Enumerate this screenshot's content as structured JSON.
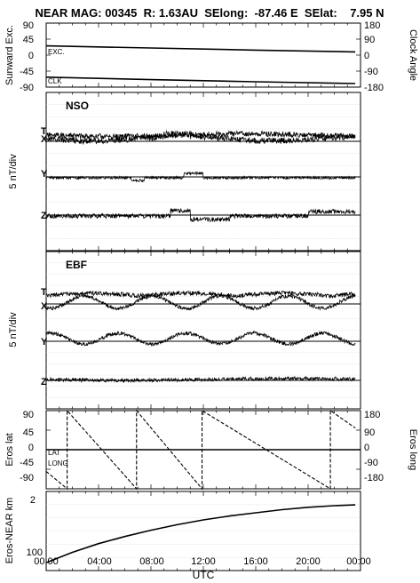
{
  "title": "NEAR MAG: 00345  R: 1.63AU  SElong:  -87.46 E  SElat:    7.95 N",
  "xaxis": {
    "label": "UTC",
    "ticks": [
      "00:00",
      "04:00",
      "08:00",
      "12:00",
      "16:00",
      "20:00",
      "00:00"
    ]
  },
  "chart_data": [
    {
      "type": "line",
      "panel": "sunward-clock",
      "ylabel_left": "Sunward Exc.",
      "ylabel_right": "Clock Angle",
      "yticks_left": [
        "90",
        "45",
        "0",
        "-45",
        "-90"
      ],
      "yticks_right": [
        "180",
        "90",
        "0",
        "-90",
        "-180"
      ],
      "ylim_left": [
        -90,
        90
      ],
      "ylim_right": [
        -180,
        180
      ],
      "series": [
        {
          "name": "EXC.",
          "x_hours": [
            0,
            8,
            16,
            23.6
          ],
          "values": [
            26,
            20,
            14,
            9
          ]
        },
        {
          "name": "CLK",
          "x_hours": [
            0,
            8,
            16,
            23.6
          ],
          "values": [
            -124,
            -138,
            -150,
            -160
          ]
        }
      ]
    },
    {
      "type": "line",
      "panel": "nso",
      "panel_label": "NSO",
      "ylabel": "5 nT/div",
      "series": [
        {
          "name": "T"
        },
        {
          "name": "X"
        },
        {
          "name": "Y"
        },
        {
          "name": "Z"
        }
      ]
    },
    {
      "type": "line",
      "panel": "ebf",
      "panel_label": "EBF",
      "ylabel": "5 nT/div",
      "series": [
        {
          "name": "T"
        },
        {
          "name": "X"
        },
        {
          "name": "Y"
        },
        {
          "name": "Z"
        }
      ]
    },
    {
      "type": "line",
      "panel": "eros-lat-long",
      "ylabel_left": "Eros lat",
      "ylabel_right": "Eros long",
      "yticks_left": [
        "90",
        "45",
        "0",
        "-45",
        "-90"
      ],
      "yticks_right": [
        "180",
        "90",
        "0",
        "-90",
        "-180"
      ],
      "ylim_left": [
        -90,
        90
      ],
      "ylim_right": [
        -180,
        180
      ],
      "series": [
        {
          "name": "LAT",
          "x_hours": [
            0,
            24
          ],
          "values": [
            0,
            0
          ]
        },
        {
          "name": "LONG",
          "x_hours": [
            0,
            1.6,
            1.6,
            6.9,
            6.9,
            11.9,
            11.9,
            21.7,
            21.7,
            23.6
          ],
          "values": [
            -100,
            -180,
            180,
            -180,
            180,
            -180,
            180,
            -180,
            180,
            100
          ]
        }
      ]
    },
    {
      "type": "line",
      "panel": "eros-near-range",
      "ylabel": "Eros-NEAR km",
      "yticks": [
        "2",
        "100"
      ],
      "series": [
        {
          "x_hours": [
            0,
            2,
            4,
            6,
            8,
            10,
            12,
            14,
            16,
            18,
            20,
            22,
            23.6
          ],
          "values": [
            0.1,
            0.23,
            0.34,
            0.43,
            0.51,
            0.58,
            0.64,
            0.69,
            0.73,
            0.77,
            0.8,
            0.82,
            0.83
          ]
        }
      ]
    }
  ]
}
